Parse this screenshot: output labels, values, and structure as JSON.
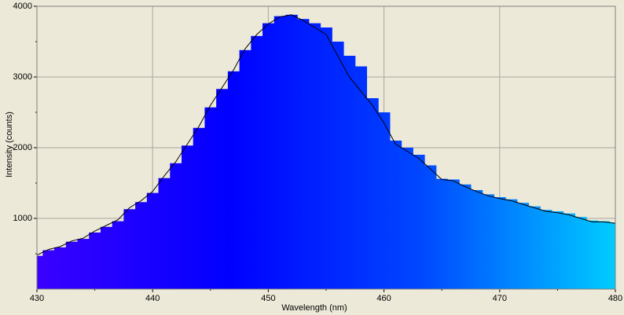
{
  "chart_data": {
    "type": "area",
    "x_label": "Wavelength (nm)",
    "y_label": "Intensity (counts)",
    "x": [
      430,
      431,
      432,
      433,
      434,
      435,
      436,
      437,
      438,
      439,
      440,
      441,
      442,
      443,
      444,
      445,
      446,
      447,
      448,
      449,
      450,
      451,
      452,
      453,
      454,
      455,
      456,
      457,
      458,
      459,
      460,
      461,
      462,
      463,
      464,
      465,
      466,
      467,
      468,
      469,
      470,
      471,
      472,
      473,
      474,
      475,
      476,
      477,
      478,
      479,
      480
    ],
    "series": [
      {
        "style": "step-area",
        "colors": [
          "#3a00ff",
          "#0000ff",
          "#0048ff",
          "#00ccff"
        ],
        "values": [
          470,
          550,
          590,
          670,
          710,
          800,
          880,
          960,
          1130,
          1230,
          1360,
          1570,
          1780,
          2030,
          2280,
          2570,
          2830,
          3080,
          3380,
          3580,
          3760,
          3860,
          3880,
          3820,
          3760,
          3700,
          3500,
          3300,
          3150,
          2700,
          2500,
          2100,
          2000,
          1900,
          1750,
          1560,
          1550,
          1480,
          1400,
          1340,
          1300,
          1270,
          1220,
          1170,
          1120,
          1100,
          1070,
          1020,
          970,
          960,
          940
        ]
      },
      {
        "style": "line",
        "color": "#000000",
        "values": [
          480,
          560,
          600,
          680,
          720,
          820,
          900,
          980,
          1150,
          1250,
          1380,
          1600,
          1800,
          2050,
          2300,
          2600,
          2850,
          3100,
          3400,
          3600,
          3750,
          3850,
          3880,
          3800,
          3700,
          3600,
          3300,
          3000,
          2800,
          2600,
          2350,
          2050,
          1950,
          1850,
          1700,
          1550,
          1530,
          1450,
          1380,
          1320,
          1280,
          1250,
          1200,
          1150,
          1100,
          1080,
          1050,
          1000,
          950,
          950,
          930
        ]
      }
    ],
    "xlim": [
      430,
      480
    ],
    "xticks": [
      430,
      440,
      450,
      460,
      470,
      480
    ],
    "xminorticks": [
      435,
      445,
      455,
      465,
      475
    ],
    "ylim": [
      0,
      4000
    ],
    "yticks": [
      1000,
      2000,
      3000,
      4000
    ],
    "yminorticks": [
      500,
      1500,
      2500,
      3500
    ],
    "grid": true
  }
}
